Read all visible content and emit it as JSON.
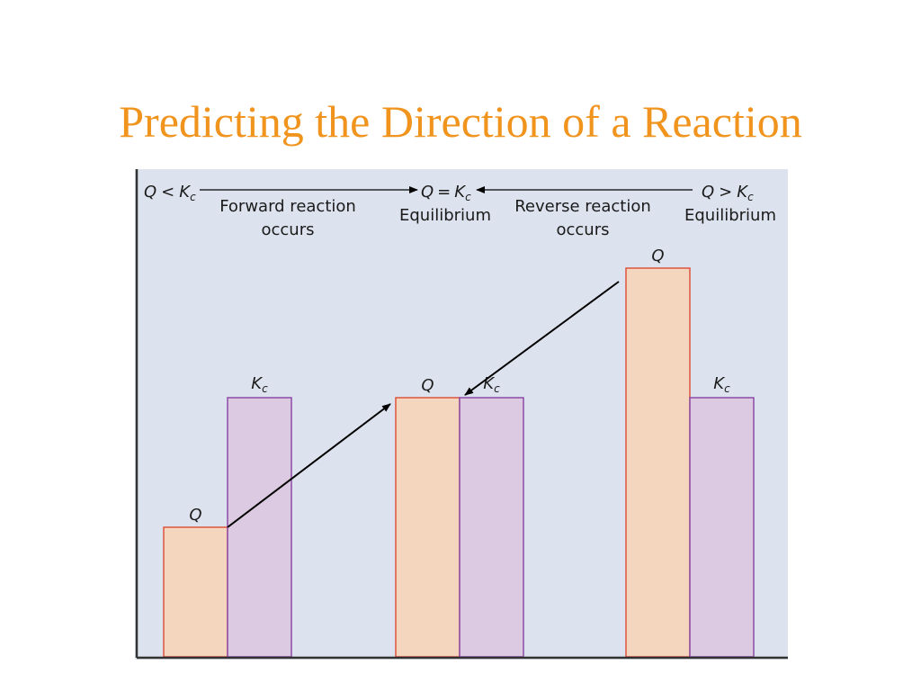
{
  "slide": {
    "title": "Predicting the Direction of a Reaction"
  },
  "header": {
    "left_condition": {
      "q": "Q",
      "op": "<",
      "k": "K",
      "sub": "c"
    },
    "center_condition": {
      "q": "Q",
      "op": "=",
      "k": "K",
      "sub": "c"
    },
    "right_condition": {
      "q": "Q",
      "op": ">",
      "k": "K",
      "sub": "c"
    },
    "forward_line1": "Forward reaction",
    "forward_line2": "occurs",
    "reverse_line1": "Reverse reaction",
    "reverse_line2": "occurs",
    "equilibrium_center": "Equilibrium",
    "equilibrium_right": "Equilibrium"
  },
  "colors": {
    "q_fill": "#f4d6bf",
    "q_stroke": "#e0533e",
    "k_fill": "#dccae2",
    "k_stroke": "#8c4aa6",
    "background": "#dde3ee",
    "title": "#f0941e"
  },
  "chart_data": {
    "type": "bar",
    "categories": [
      "Q < Kc",
      "Q = Kc",
      "Q > Kc"
    ],
    "series": [
      {
        "name": "Q",
        "values": [
          1.0,
          2.0,
          3.0
        ]
      },
      {
        "name": "Kc",
        "values": [
          2.0,
          2.0,
          2.0
        ]
      }
    ],
    "bar_labels": {
      "q": "Q",
      "k": "K",
      "k_sub": "c"
    }
  }
}
